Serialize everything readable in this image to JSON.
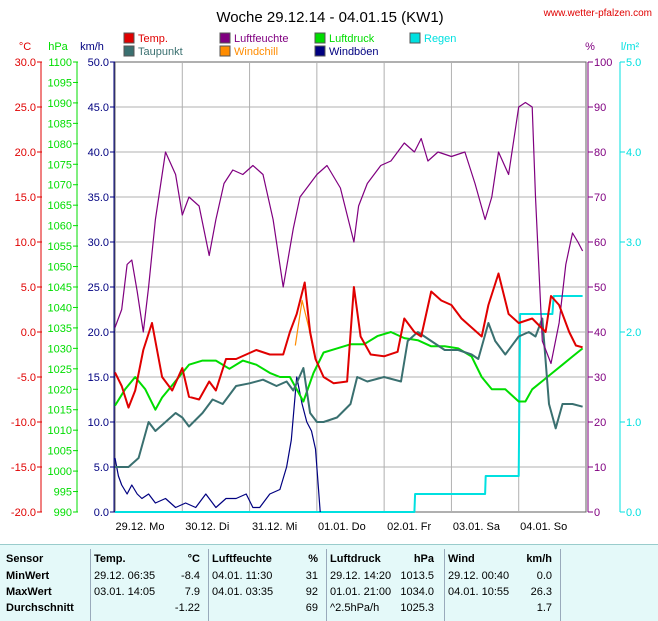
{
  "header": {
    "title": "Woche 29.12.14 - 04.01.15 (KW1)",
    "url": "www.wetter-pfalzen.com"
  },
  "colors": {
    "temp": "#e00000",
    "taupunkt": "#3a7070",
    "windchill": "#ff8c00",
    "luftfeuchte": "#800080",
    "luftdruck": "#00dd00",
    "windboeen": "#000080",
    "regen": "#00e0e0",
    "grid": "#b0b0b0"
  },
  "axes": {
    "temp": {
      "unit": "°C",
      "ticks": [
        "30.0",
        "25.0",
        "20.0",
        "15.0",
        "10.0",
        "5.0",
        "0.0",
        "-5.0",
        "-10.0",
        "-15.0",
        "-20.0"
      ]
    },
    "pressure": {
      "unit": "hPa",
      "ticks": [
        "1100",
        "1095",
        "1090",
        "1085",
        "1080",
        "1075",
        "1070",
        "1065",
        "1060",
        "1055",
        "1050",
        "1045",
        "1040",
        "1035",
        "1030",
        "1025",
        "1020",
        "1015",
        "1010",
        "1005",
        "1000",
        "995",
        "990"
      ]
    },
    "wind": {
      "unit": "km/h",
      "ticks": [
        "50.0",
        "45.0",
        "40.0",
        "35.0",
        "30.0",
        "25.0",
        "20.0",
        "15.0",
        "10.0",
        "5.0",
        "0.0"
      ]
    },
    "humidity": {
      "unit": "%",
      "ticks": [
        "100",
        "90",
        "80",
        "70",
        "60",
        "50",
        "40",
        "30",
        "20",
        "10",
        "0"
      ]
    },
    "rain": {
      "unit": "l/m²",
      "ticks": [
        "5.0",
        "4.0",
        "3.0",
        "2.0",
        "1.0",
        "0.0"
      ]
    },
    "x_ticks": [
      "29.12. Mo",
      "30.12. Di",
      "31.12. Mi",
      "01.01. Do",
      "02.01. Fr",
      "03.01. Sa",
      "04.01. So"
    ]
  },
  "chart_data": {
    "type": "line",
    "title": "Woche 29.12.14 - 04.01.15 (KW1)",
    "x_unit": "days since 29.12. 00:00",
    "x_range": [
      0,
      7
    ],
    "legend": [
      {
        "name": "Temp.",
        "key": "temp"
      },
      {
        "name": "Taupunkt",
        "key": "taupunkt"
      },
      {
        "name": "Luftfeuchte",
        "key": "luftfeuchte"
      },
      {
        "name": "Windchill",
        "key": "windchill"
      },
      {
        "name": "Luftdruck",
        "key": "luftdruck"
      },
      {
        "name": "Windböen",
        "key": "windboeen"
      },
      {
        "name": "Regen",
        "key": "regen"
      }
    ],
    "series": [
      {
        "name": "Temp.",
        "key": "temp",
        "axis": "temp",
        "ylim": [
          -20,
          30
        ],
        "x": [
          0,
          0.1,
          0.2,
          0.3,
          0.42,
          0.55,
          0.7,
          0.85,
          1.0,
          1.1,
          1.25,
          1.4,
          1.5,
          1.65,
          1.8,
          1.95,
          2.1,
          2.3,
          2.5,
          2.6,
          2.7,
          2.82,
          2.9,
          2.98,
          3.1,
          3.25,
          3.45,
          3.55,
          3.65,
          3.8,
          4.0,
          4.2,
          4.3,
          4.45,
          4.55,
          4.7,
          4.85,
          5.0,
          5.15,
          5.3,
          5.45,
          5.55,
          5.7,
          5.85,
          6.0,
          6.2,
          6.4,
          6.48,
          6.6,
          6.75,
          6.85,
          6.95
        ],
        "values": [
          -4.5,
          -6,
          -8.4,
          -6.5,
          -2,
          1,
          -5,
          -6.5,
          -4,
          -7.2,
          -7.5,
          -5.5,
          -6.5,
          -3,
          -3,
          -2.5,
          -2,
          -2.5,
          -2.5,
          0,
          2,
          5.5,
          0,
          -3,
          -5,
          -5.7,
          -5.5,
          5,
          -0.5,
          -2.5,
          -2.7,
          -2.2,
          1.5,
          0,
          -0.5,
          4.5,
          3.5,
          3,
          1.5,
          0.5,
          -0.5,
          3,
          6.5,
          2,
          1,
          1.5,
          0,
          4,
          3,
          0,
          -1.5,
          -1.7
        ]
      },
      {
        "name": "Taupunkt",
        "key": "taupunkt",
        "axis": "temp",
        "ylim": [
          -20,
          30
        ],
        "x": [
          0,
          0.2,
          0.35,
          0.5,
          0.6,
          0.75,
          0.9,
          1.0,
          1.1,
          1.3,
          1.45,
          1.6,
          1.8,
          2.0,
          2.2,
          2.4,
          2.55,
          2.65,
          2.8,
          2.9,
          3.0,
          3.1,
          3.3,
          3.5,
          3.6,
          3.75,
          4.0,
          4.25,
          4.35,
          4.5,
          4.7,
          4.9,
          5.1,
          5.3,
          5.4,
          5.55,
          5.65,
          5.8,
          6.0,
          6.15,
          6.25,
          6.35,
          6.45,
          6.55,
          6.65,
          6.8,
          6.95
        ],
        "values": [
          -15,
          -15,
          -14,
          -10,
          -11,
          -10,
          -9,
          -9.5,
          -10.5,
          -9,
          -7.5,
          -8,
          -6,
          -5.7,
          -5.3,
          -6,
          -5.5,
          -6.5,
          -4,
          -9,
          -10,
          -10,
          -9.5,
          -8,
          -5,
          -5.5,
          -5,
          -5.5,
          -1,
          0,
          -1,
          -2,
          -2,
          -2.5,
          -3,
          1,
          -1,
          -2.5,
          -0.5,
          0,
          -0.5,
          1.5,
          -8,
          -10.7,
          -8,
          -8,
          -8.3
        ]
      },
      {
        "name": "Windchill",
        "key": "windchill",
        "axis": "temp",
        "ylim": [
          -20,
          30
        ],
        "x": [
          2.68,
          2.78,
          2.88,
          2.96
        ],
        "values": [
          -1.5,
          3.5,
          0.5,
          -2.5
        ]
      },
      {
        "name": "Luftfeuchte",
        "key": "luftfeuchte",
        "axis": "humidity",
        "ylim": [
          0,
          100
        ],
        "x": [
          0,
          0.1,
          0.18,
          0.25,
          0.33,
          0.42,
          0.5,
          0.6,
          0.75,
          0.9,
          1.0,
          1.1,
          1.25,
          1.4,
          1.5,
          1.62,
          1.75,
          1.9,
          2.05,
          2.2,
          2.35,
          2.5,
          2.65,
          2.75,
          2.85,
          3.0,
          3.15,
          3.35,
          3.55,
          3.62,
          3.75,
          3.95,
          4.1,
          4.3,
          4.45,
          4.55,
          4.65,
          4.8,
          5.0,
          5.2,
          5.35,
          5.5,
          5.6,
          5.7,
          5.85,
          6.0,
          6.1,
          6.2,
          6.25,
          6.35,
          6.48,
          6.6,
          6.7,
          6.8,
          6.88,
          6.95
        ],
        "values": [
          41,
          45,
          55,
          56,
          49,
          40,
          50,
          65,
          80,
          75,
          66,
          70,
          68,
          57,
          65,
          73,
          76,
          75,
          77,
          75,
          65,
          50,
          63,
          70,
          72,
          75,
          77,
          72,
          60,
          68,
          73,
          77,
          78,
          82,
          80,
          83,
          78,
          80,
          79,
          80,
          73,
          65,
          70,
          80,
          75,
          90,
          91,
          90,
          70,
          38,
          33,
          42,
          55,
          62,
          60,
          58
        ]
      },
      {
        "name": "Luftdruck",
        "key": "luftdruck",
        "axis": "pressure",
        "ylim": [
          990,
          1100
        ],
        "x": [
          0,
          0.15,
          0.3,
          0.45,
          0.6,
          0.7,
          0.85,
          1.0,
          1.1,
          1.3,
          1.5,
          1.7,
          1.9,
          2.1,
          2.3,
          2.45,
          2.6,
          2.7,
          2.8,
          2.95,
          3.1,
          3.3,
          3.5,
          3.7,
          3.9,
          4.1,
          4.3,
          4.5,
          4.7,
          4.9,
          5.1,
          5.3,
          5.45,
          5.6,
          5.8,
          6.0,
          6.1,
          6.2,
          6.35,
          6.5,
          6.65,
          6.8,
          6.95
        ],
        "values": [
          1016,
          1020,
          1023,
          1020,
          1015,
          1018,
          1021,
          1024,
          1026,
          1027,
          1027,
          1025,
          1027,
          1026,
          1024,
          1023,
          1023,
          1020,
          1017,
          1024,
          1029,
          1030,
          1031,
          1031,
          1033,
          1034,
          1032.5,
          1032,
          1030.5,
          1030.5,
          1030,
          1028,
          1023,
          1020,
          1020,
          1017,
          1017,
          1020,
          1022,
          1024,
          1026,
          1028,
          1030
        ]
      },
      {
        "name": "Windböen",
        "key": "windboeen",
        "axis": "wind",
        "ylim": [
          0,
          50
        ],
        "x": [
          0,
          0.05,
          0.1,
          0.18,
          0.25,
          0.33,
          0.4,
          0.5,
          0.6,
          0.75,
          0.9,
          1.05,
          1.2,
          1.35,
          1.5,
          1.65,
          1.8,
          1.95,
          2.05,
          2.15,
          2.3,
          2.45,
          2.55,
          2.62,
          2.7,
          2.78,
          2.85,
          2.92,
          2.98,
          3.02,
          3.05
        ],
        "values": [
          6,
          4,
          3,
          2,
          3,
          2,
          1.5,
          2,
          1,
          1.5,
          0.5,
          1,
          0.5,
          2,
          0.5,
          1.5,
          1.5,
          2,
          0.5,
          0.5,
          2,
          2.5,
          5,
          8,
          15,
          12,
          10,
          9,
          7,
          3,
          0
        ]
      },
      {
        "name": "Regen",
        "key": "regen",
        "axis": "rain",
        "ylim": [
          0,
          5
        ],
        "x": [
          0,
          4.45,
          4.46,
          5.5,
          5.51,
          6.0,
          6.02,
          6.5,
          6.52,
          6.95
        ],
        "values": [
          0,
          0,
          0.2,
          0.2,
          0.4,
          0.4,
          2.2,
          2.2,
          2.4,
          2.4
        ]
      }
    ]
  },
  "stats": {
    "headers": [
      "Sensor",
      "Temp.",
      "°C",
      "Luftfeuchte",
      "%",
      "Luftdruck",
      "hPa",
      "Wind",
      "km/h"
    ],
    "rows": [
      {
        "label": "MinWert",
        "temp_time": "29.12.  06:35",
        "temp_val": "-8.4",
        "hum_time": "04.01.  11:30",
        "hum_val": "31",
        "press_time": "29.12.  14:20",
        "press_val": "1013.5",
        "wind_time": "29.12.  00:40",
        "wind_val": "0.0"
      },
      {
        "label": "MaxWert",
        "temp_time": "03.01.  14:05",
        "temp_val": "7.9",
        "hum_time": "04.01.  03:35",
        "hum_val": "92",
        "press_time": "01.01.  21:00",
        "press_val": "1034.0",
        "wind_time": "04.01.  10:55",
        "wind_val": "26.3"
      },
      {
        "label": "Durchschnitt",
        "temp_time": "",
        "temp_val": "-1.22",
        "hum_time": "",
        "hum_val": "69",
        "press_time": "^2.5hPa/h",
        "press_val": "1025.3",
        "wind_time": "",
        "wind_val": "1.7"
      }
    ]
  }
}
